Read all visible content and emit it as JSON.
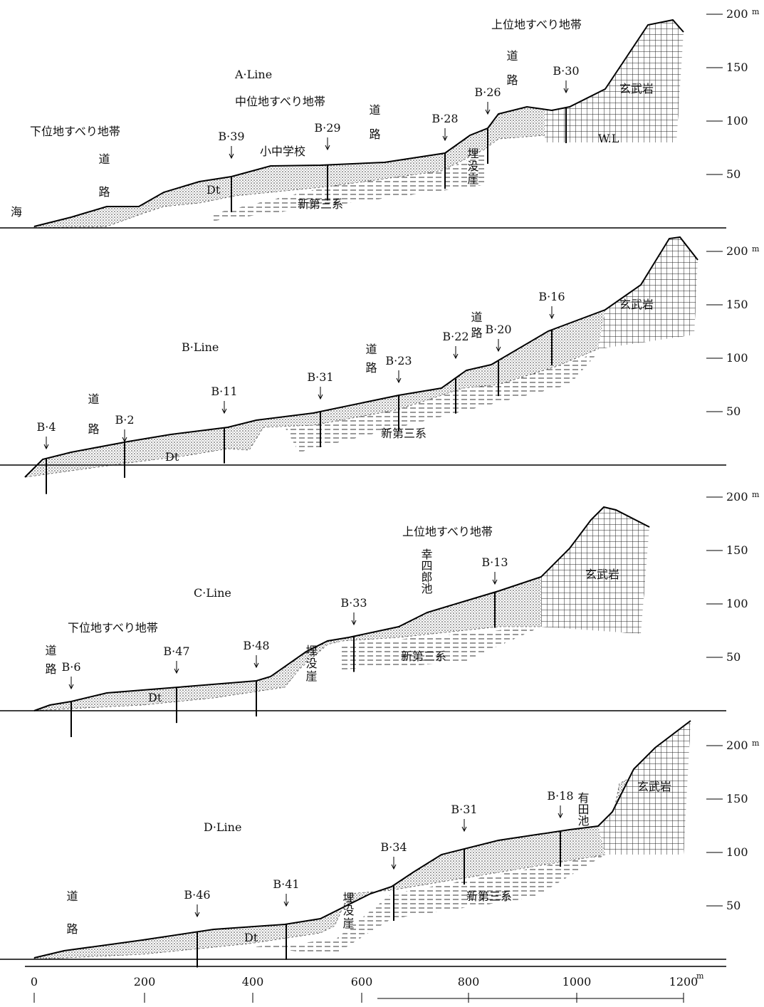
{
  "panels": [
    {
      "line": "A·Line",
      "labels": [
        "中位地すべり地帯",
        "下位地すべり地帯",
        "上位地すべり地帯",
        "海",
        "小中学校",
        "Dt",
        "新第三系",
        "玄武岩",
        "W.L",
        "道路",
        "道路",
        "道路",
        "埋没崖"
      ],
      "boreholes": [
        "B·39",
        "B·29",
        "B·28",
        "B·26",
        "B·30"
      ]
    },
    {
      "line": "B·Line",
      "labels": [
        "Dt",
        "新第三系",
        "玄武岩",
        "道路",
        "道路",
        "道路"
      ],
      "boreholes": [
        "B·4",
        "B·2",
        "B·11",
        "B·31",
        "B·23",
        "B·22",
        "B·20",
        "B·16"
      ]
    },
    {
      "line": "C·Line",
      "labels": [
        "下位地すべり地帯",
        "上位地すべり地帯",
        "Dt",
        "新第三系",
        "玄武岩",
        "道路",
        "幸四郎池",
        "埋没崖"
      ],
      "boreholes": [
        "B·6",
        "B·47",
        "B·48",
        "B·33",
        "B·13"
      ]
    },
    {
      "line": "D·Line",
      "labels": [
        "Dt",
        "新第三系",
        "玄武岩",
        "道路",
        "埋没崖",
        "有田池"
      ],
      "boreholes": [
        "B·46",
        "B·41",
        "B·34",
        "B·31",
        "B·18"
      ]
    }
  ],
  "scale": {
    "labels": [
      "200",
      "150",
      "100",
      "50"
    ],
    "unit": "m"
  },
  "x_axis": {
    "labels": [
      "0",
      "200",
      "400",
      "600",
      "800",
      "1000",
      "1200"
    ],
    "unit": "m"
  }
}
